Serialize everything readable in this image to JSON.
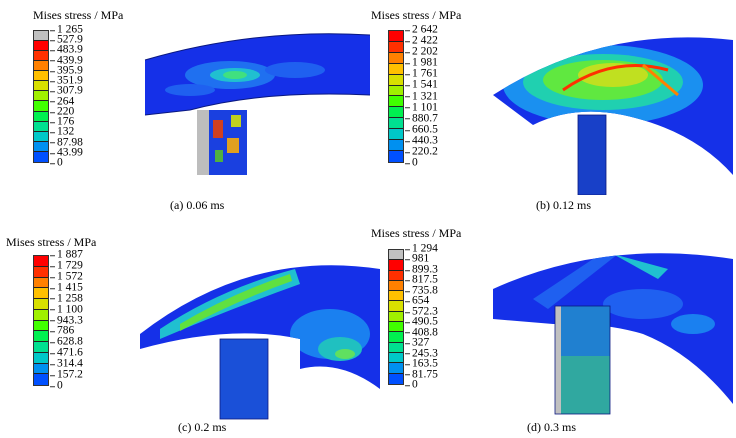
{
  "legend_title": "Mises stress / MPa",
  "colormap": [
    "#0000ff",
    "#0050ff",
    "#0090f0",
    "#00c8c8",
    "#00e090",
    "#00f050",
    "#40ff00",
    "#a0f000",
    "#d8e000",
    "#ffc000",
    "#ff8000",
    "#ff3000",
    "#ff0000"
  ],
  "panels": [
    {
      "caption": "(a)  0.06 ms",
      "overflow_color": "#c0c0c0",
      "ticks": [
        "1 265",
        "527.9",
        "483.9",
        "439.9",
        "395.9",
        "351.9",
        "307.9",
        "264",
        "220",
        "176",
        "132",
        "87.98",
        "43.99",
        "0"
      ]
    },
    {
      "caption": "(b)  0.12 ms",
      "overflow_color": null,
      "ticks": [
        "2 642",
        "2 422",
        "2 202",
        "1 981",
        "1 761",
        "1 541",
        "1 321",
        "1 101",
        "880.7",
        "660.5",
        "440.3",
        "220.2",
        "0"
      ]
    },
    {
      "caption": "(c)  0.2 ms",
      "overflow_color": null,
      "ticks": [
        "1 887",
        "1 729",
        "1 572",
        "1 415",
        "1 258",
        "1 100",
        "943.3",
        "786",
        "628.8",
        "471.6",
        "314.4",
        "157.2",
        "0"
      ]
    },
    {
      "caption": "(d)  0.3 ms",
      "overflow_color": "#c0c0c0",
      "ticks": [
        "1 294",
        "981",
        "899.3",
        "817.5",
        "735.8",
        "654",
        "572.3",
        "490.5",
        "408.8",
        "327",
        "245.3",
        "163.5",
        "81.75",
        "0"
      ]
    }
  ]
}
